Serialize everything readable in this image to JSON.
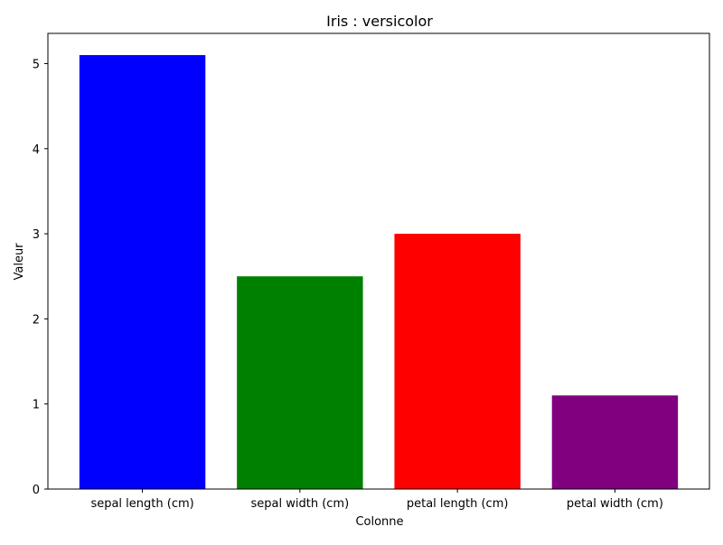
{
  "chart_data": {
    "type": "bar",
    "title": "Iris : versicolor",
    "xlabel": "Colonne",
    "ylabel": "Valeur",
    "categories": [
      "sepal length (cm)",
      "sepal width (cm)",
      "petal length (cm)",
      "petal width (cm)"
    ],
    "values": [
      5.1,
      2.5,
      3.0,
      1.1
    ],
    "colors": [
      "#0000ff",
      "#008000",
      "#ff0000",
      "#800080"
    ],
    "ylim": [
      0,
      5.355
    ],
    "yticks": [
      0,
      1,
      2,
      3,
      4,
      5
    ],
    "grid": false,
    "legend": "none"
  }
}
